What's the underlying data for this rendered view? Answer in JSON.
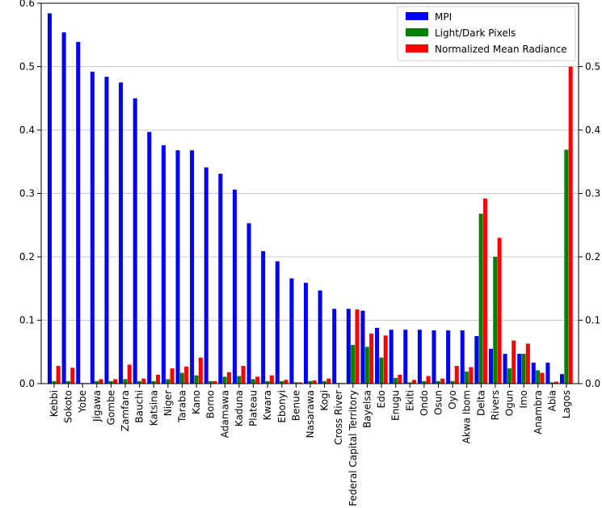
{
  "chart_data": {
    "type": "bar",
    "title": "",
    "xlabel": "",
    "ylabel": "",
    "ylim": [
      0,
      0.6
    ],
    "yticks": [
      "0.0",
      "0.1",
      "0.2",
      "0.3",
      "0.4",
      "0.5",
      "0.6"
    ],
    "secondary_yticks": [
      "0.0",
      "0.1",
      "0.2",
      "0.3",
      "0.4",
      "0.5"
    ],
    "grid": "horizontal",
    "legend_position": "top-right",
    "categories": [
      "Kebbi",
      "Sokoto",
      "Yobe",
      "Jigawa",
      "Gombe",
      "Zamfara",
      "Bauchi",
      "Katsina",
      "Niger",
      "Taraba",
      "Kano",
      "Borno",
      "Adamawa",
      "Kaduna",
      "Plateau",
      "Kwara",
      "Ebonyi",
      "Benue",
      "Nasarawa",
      "Kogi",
      "Cross River",
      "Federal Capital Territory",
      "Bayelsa",
      "Edo",
      "Enugu",
      "Ekiti",
      "Ondo",
      "Osun",
      "Oyo",
      "Akwa Ibom",
      "Delta",
      "Rivers",
      "Ogun",
      "Imo",
      "Anambra",
      "Abia",
      "Lagos"
    ],
    "series": [
      {
        "name": "MPI",
        "color": "#0000ff",
        "values": [
          0.584,
          0.554,
          0.539,
          0.492,
          0.484,
          0.475,
          0.45,
          0.397,
          0.376,
          0.368,
          0.368,
          0.341,
          0.331,
          0.306,
          0.253,
          0.209,
          0.193,
          0.166,
          0.159,
          0.147,
          0.118,
          0.118,
          0.115,
          0.088,
          0.085,
          0.085,
          0.085,
          0.084,
          0.084,
          0.084,
          0.075,
          0.055,
          0.047,
          0.047,
          0.033,
          0.033,
          0.015
        ]
      },
      {
        "name": "Light/Dark Pixels",
        "color": "#008000",
        "values": [
          0.004,
          0.004,
          0.001,
          0.004,
          0.004,
          0.007,
          0.004,
          0.004,
          0.007,
          0.017,
          0.013,
          0.004,
          0.011,
          0.012,
          0.007,
          0.004,
          0.004,
          0.002,
          0.004,
          0.004,
          0.001,
          0.061,
          0.058,
          0.041,
          0.009,
          0.002,
          0.004,
          0.004,
          0.004,
          0.019,
          0.268,
          0.2,
          0.024,
          0.047,
          0.021,
          0.002,
          0.369
        ]
      },
      {
        "name": "Normalized Mean Radiance",
        "color": "#ff0000",
        "values": [
          0.028,
          0.025,
          0.001,
          0.007,
          0.007,
          0.03,
          0.008,
          0.014,
          0.024,
          0.027,
          0.041,
          0.004,
          0.018,
          0.028,
          0.011,
          0.013,
          0.006,
          0.002,
          0.005,
          0.008,
          0.001,
          0.117,
          0.079,
          0.076,
          0.014,
          0.006,
          0.012,
          0.008,
          0.028,
          0.026,
          0.292,
          0.23,
          0.068,
          0.063,
          0.017,
          0.003,
          0.5
        ]
      }
    ]
  }
}
